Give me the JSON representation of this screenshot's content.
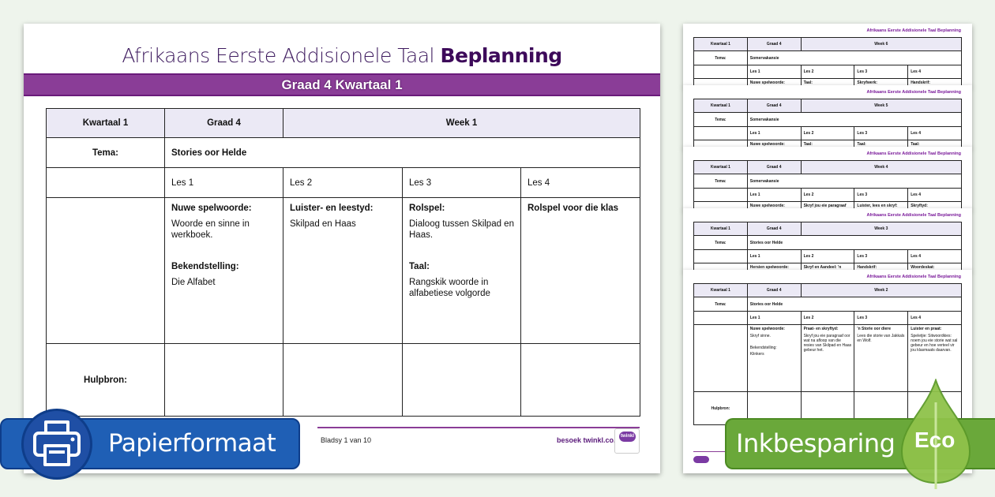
{
  "main": {
    "title_regular": "Afrikaans Eerste Addisionele Taal",
    "title_bold": "Beplanning",
    "subtitle": "Graad 4 Kwartaal 1",
    "header": [
      "Kwartaal 1",
      "Graad 4",
      "Week 1"
    ],
    "tema_label": "Tema:",
    "tema_value": "Stories oor Helde",
    "lessons": [
      "Les 1",
      "Les 2",
      "Les 3",
      "Les 4"
    ],
    "content": [
      [
        {
          "b": "Nuwe spelwoorde:"
        },
        {
          "t": "Woorde en sinne in werkboek."
        },
        {
          "t": ""
        },
        {
          "b": "Bekendstelling:"
        },
        {
          "t": "Die Alfabet"
        }
      ],
      [
        {
          "b": "Luister- en leestyd:"
        },
        {
          "t": "Skilpad en Haas"
        }
      ],
      [
        {
          "b": "Rolspel:"
        },
        {
          "t": "Dialoog tussen Skilpad en Haas."
        },
        {
          "t": ""
        },
        {
          "b": "Taal:"
        },
        {
          "t": "Rangskik woorde in alfabetiese volgorde"
        }
      ],
      [
        {
          "b": "Rolspel voor die klas"
        }
      ]
    ],
    "hulpbron_label": "Hulpbron:",
    "page_number": "Bladsy 1 van 10",
    "website": "besoek twinkl.co.za",
    "logo_text": "twinkl"
  },
  "badges": {
    "paper": "Papierformaat",
    "ink": "Inkbesparing",
    "eco": "Eco"
  },
  "stack_pages": [
    {
      "title": "Afrikaans Eerste Addisionele Taal Beplanning",
      "week": "Week 6",
      "tema": "Somervakansie",
      "row": [
        "Nuwe spelwoorde:",
        "Taal:",
        "Skryfwerk:",
        "Handskrif:"
      ]
    },
    {
      "title": "Afrikaans Eerste Addisionele Taal Beplanning",
      "week": "Week 5",
      "tema": "Somervakansie",
      "row": [
        "Nuwe spelwoorde:",
        "Taal:",
        "Taal:",
        "Taal:"
      ]
    },
    {
      "title": "Afrikaans Eerste Addisionele Taal Beplanning",
      "week": "Week 4",
      "tema": "Somervakansie",
      "row": [
        "Nuwe spelwoorde:",
        "Skryf jou eie paragraaf oor",
        "Luister, lees en skryf:",
        "Skryftyd:"
      ]
    },
    {
      "title": "Afrikaans Eerste Addisionele Taal Beplanning",
      "week": "Week 3",
      "tema": "Stories oor Helde",
      "row": [
        "Hersien spelwoorde:",
        "Skryf en Aandeel: 'n Gesang",
        "Handskrif:",
        "Woordeskat:"
      ]
    },
    {
      "title": "Afrikaans Eerste Addisionele Taal Beplanning",
      "week": "Week 2",
      "tema": "Stories oor Helde",
      "row": [
        "Nuwe spelwoorde:",
        "Praat- en skryftyd:",
        "'n Storie oor diere",
        "Luister en praat:"
      ],
      "content": [
        [
          "Skryf sinne.",
          "",
          "Bekendstelling:",
          "Klinkers"
        ],
        [
          "Skryf jou eie paragraaf oor wat na afloop van die resies van Skilpad en Haas gebeur het."
        ],
        [
          "Lees die storie van Jakkals en Wolf."
        ],
        [
          "Speletjie: Sitwoordkies: noem jou eie storie wat sal gebeur en hoe verteel vir jou klasmaats daarvan."
        ]
      ]
    }
  ],
  "stack_common": {
    "header": [
      "Kwartaal 1",
      "Graad 4"
    ],
    "tema_label": "Tema:",
    "lessons": [
      "Les 1",
      "Les 2",
      "Les 3",
      "Les 4"
    ],
    "hulpbron_label": "Hulpbron:"
  },
  "colors": {
    "purple": "#8a3d97",
    "blue": "#1f5fb5",
    "green": "#6aa83a",
    "header_fill": "#ebe9f5"
  }
}
